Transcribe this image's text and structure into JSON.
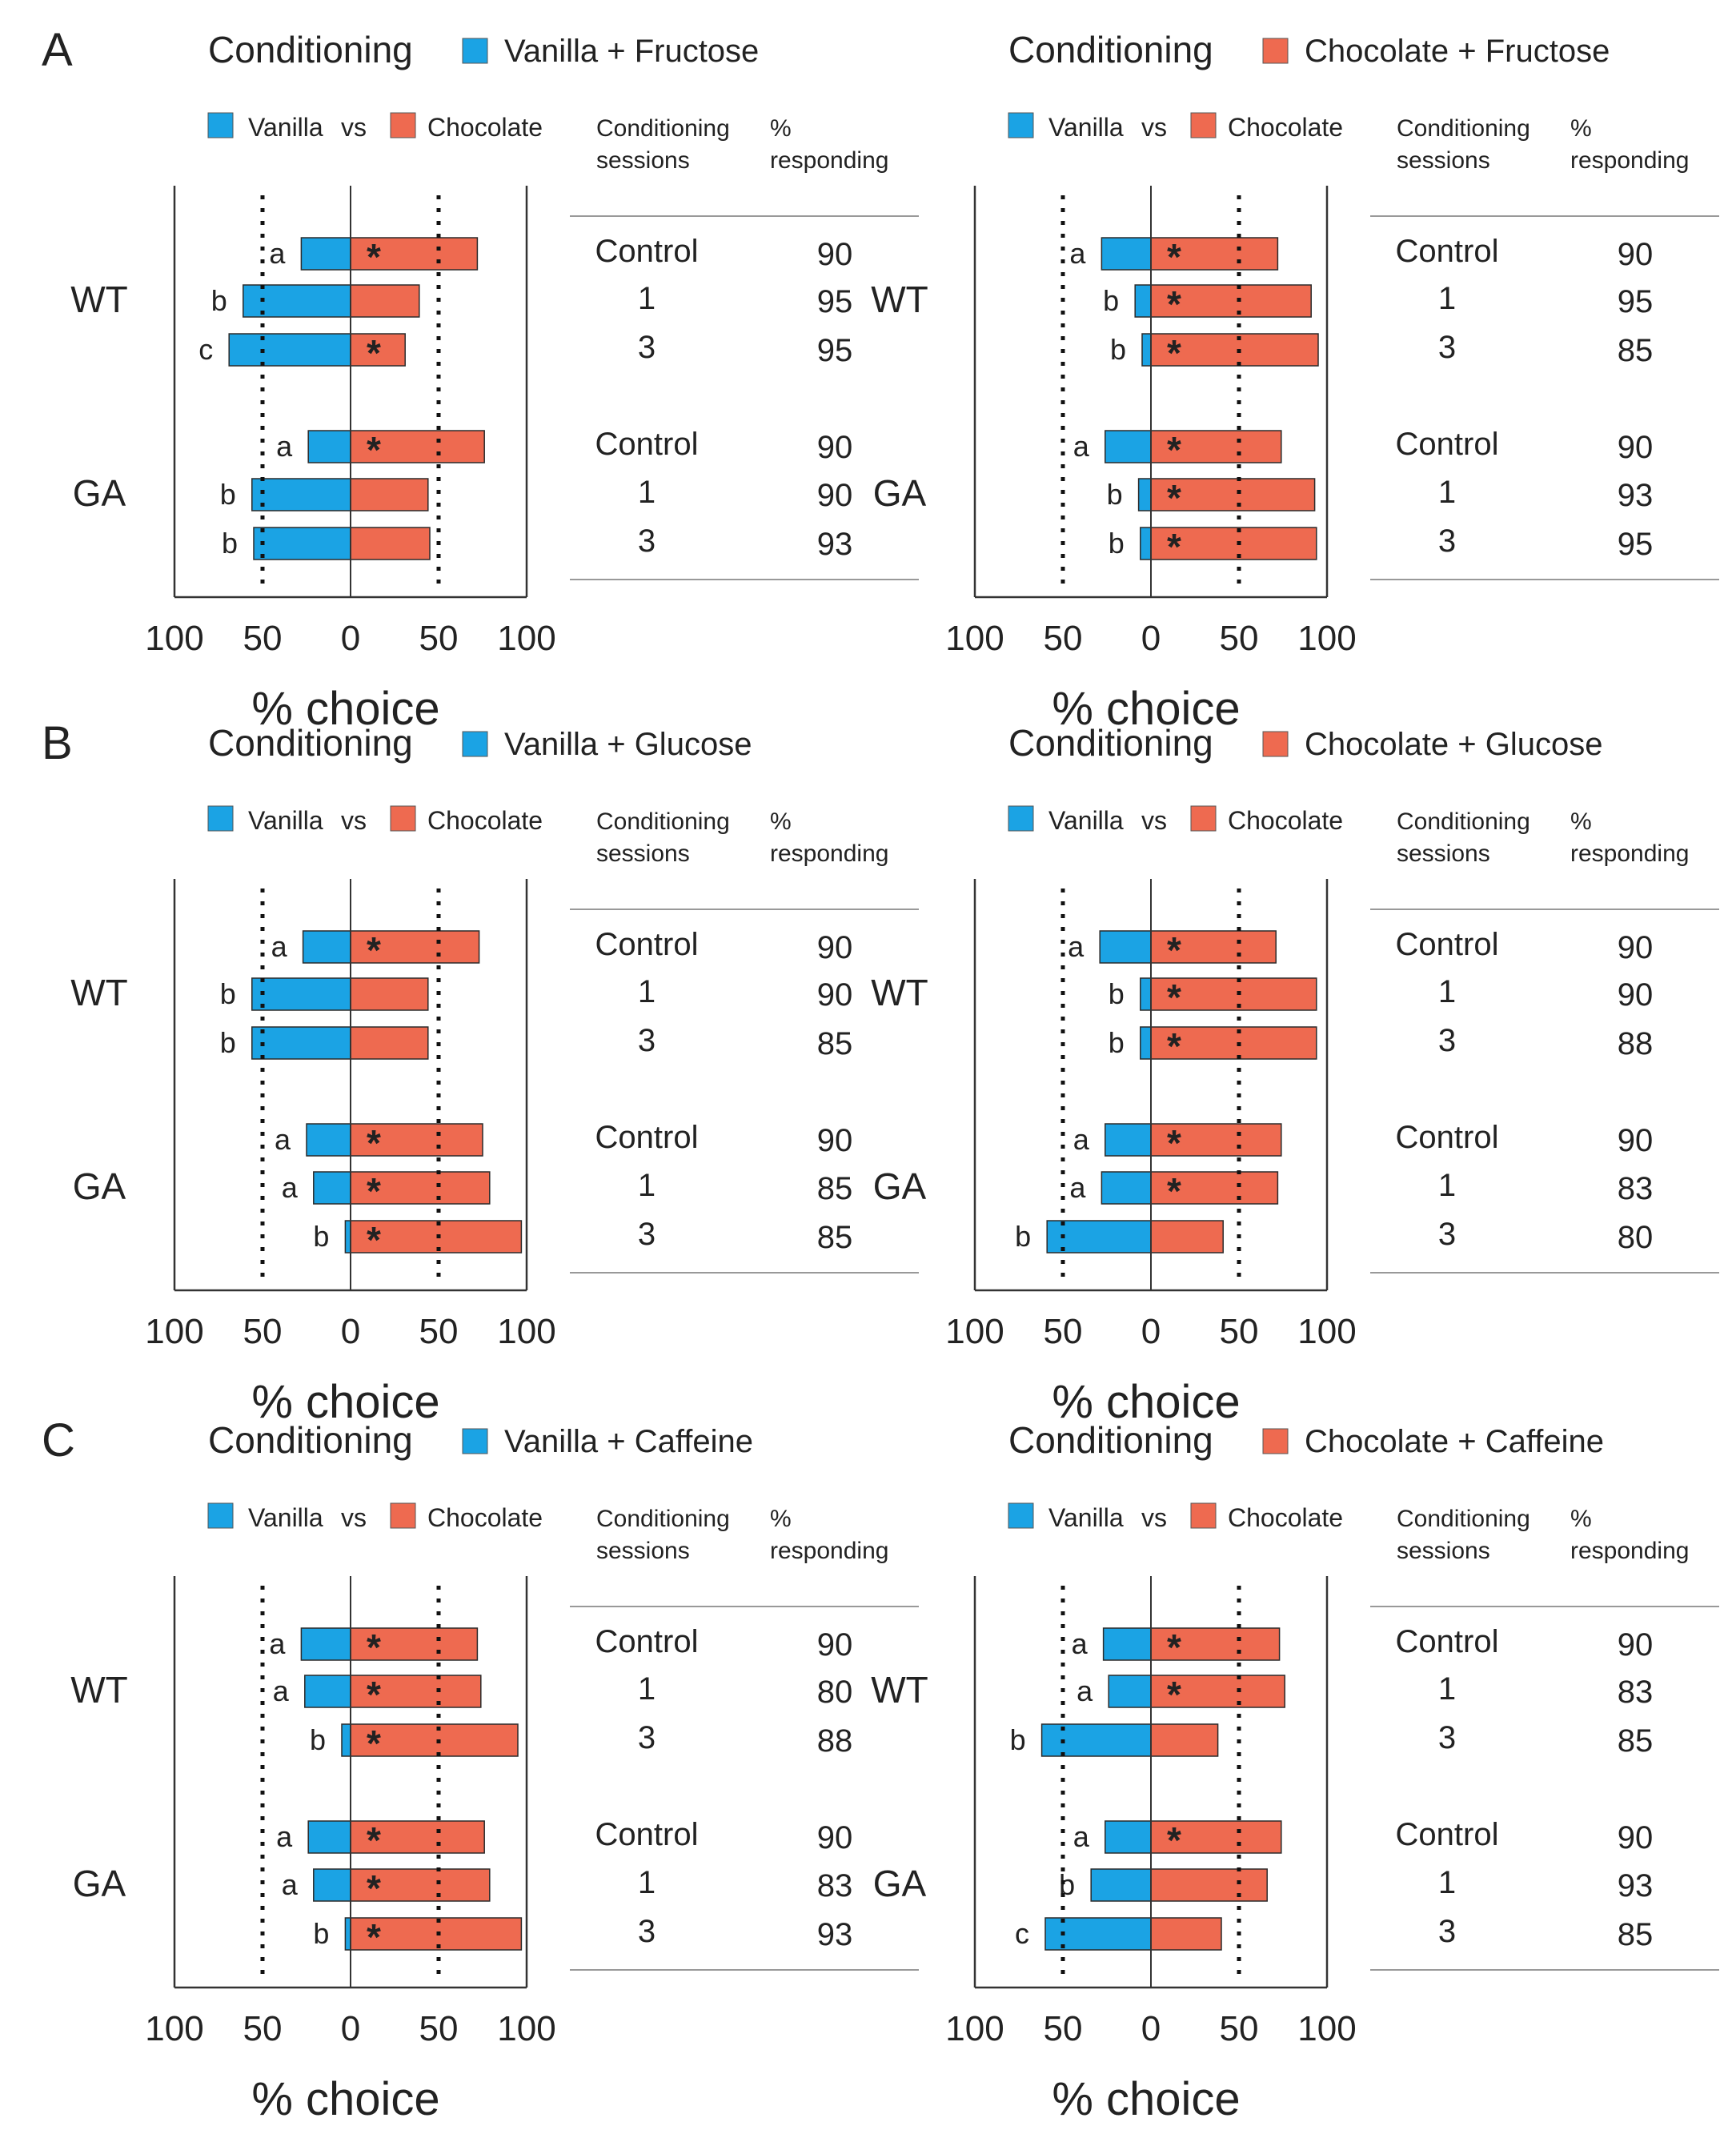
{
  "colors": {
    "vanilla": "#1ba3e4",
    "chocolate": "#ee6a50",
    "axis": "#333333",
    "text": "#222222",
    "rule": "#999999"
  },
  "labels": {
    "conditioning": "Conditioning",
    "vanilla": "Vanilla",
    "vs": "vs",
    "chocolate": "Chocolate",
    "sessions_header": [
      "Conditioning",
      "sessions"
    ],
    "responding_header": [
      "%",
      "responding"
    ],
    "groups": [
      "WT",
      "GA"
    ],
    "x_label": "% choice",
    "x_ticks": [
      "100",
      "50",
      "0",
      "50",
      "100"
    ],
    "star": "*"
  },
  "chart_data": [
    {
      "panel": "A",
      "type": "bar",
      "title": "Conditioning",
      "legend": "Vanilla + Fructose",
      "cs": "vanilla",
      "xlabel": "% choice",
      "xlim": [
        -100,
        100
      ],
      "reference_lines": [
        -50,
        50
      ],
      "groups": [
        {
          "name": "WT",
          "rows": [
            {
              "session": "Control",
              "vanilla": 28,
              "chocolate": 72,
              "letter": "a",
              "star": true,
              "responding": "90"
            },
            {
              "session": "1",
              "vanilla": 61,
              "chocolate": 39,
              "letter": "b",
              "star": false,
              "responding": "95"
            },
            {
              "session": "3",
              "vanilla": 69,
              "chocolate": 31,
              "letter": "c",
              "star": true,
              "responding": "95"
            }
          ]
        },
        {
          "name": "GA",
          "rows": [
            {
              "session": "Control",
              "vanilla": 24,
              "chocolate": 76,
              "letter": "a",
              "star": true,
              "responding": "90"
            },
            {
              "session": "1",
              "vanilla": 56,
              "chocolate": 44,
              "letter": "b",
              "star": false,
              "responding": "90"
            },
            {
              "session": "3",
              "vanilla": 55,
              "chocolate": 45,
              "letter": "b",
              "star": false,
              "responding": "93"
            }
          ]
        }
      ]
    },
    {
      "panel": "",
      "type": "bar",
      "title": "Conditioning",
      "legend": "Chocolate + Fructose",
      "cs": "chocolate",
      "xlabel": "% choice",
      "xlim": [
        -100,
        100
      ],
      "reference_lines": [
        -50,
        50
      ],
      "groups": [
        {
          "name": "WT",
          "rows": [
            {
              "session": "Control",
              "vanilla": 28,
              "chocolate": 72,
              "letter": "a",
              "star": true,
              "responding": "90"
            },
            {
              "session": "1",
              "vanilla": 9,
              "chocolate": 91,
              "letter": "b",
              "star": true,
              "responding": "95"
            },
            {
              "session": "3",
              "vanilla": 5,
              "chocolate": 95,
              "letter": "b",
              "star": true,
              "responding": "85"
            }
          ]
        },
        {
          "name": "GA",
          "rows": [
            {
              "session": "Control",
              "vanilla": 26,
              "chocolate": 74,
              "letter": "a",
              "star": true,
              "responding": "90"
            },
            {
              "session": "1",
              "vanilla": 7,
              "chocolate": 93,
              "letter": "b",
              "star": true,
              "responding": "93"
            },
            {
              "session": "3",
              "vanilla": 6,
              "chocolate": 94,
              "letter": "b",
              "star": true,
              "responding": "95"
            }
          ]
        }
      ]
    },
    {
      "panel": "B",
      "type": "bar",
      "title": "Conditioning",
      "legend": "Vanilla + Glucose",
      "cs": "vanilla",
      "xlabel": "% choice",
      "xlim": [
        -100,
        100
      ],
      "reference_lines": [
        -50,
        50
      ],
      "groups": [
        {
          "name": "WT",
          "rows": [
            {
              "session": "Control",
              "vanilla": 27,
              "chocolate": 73,
              "letter": "a",
              "star": true,
              "responding": "90"
            },
            {
              "session": "1",
              "vanilla": 56,
              "chocolate": 44,
              "letter": "b",
              "star": false,
              "responding": "90"
            },
            {
              "session": "3",
              "vanilla": 56,
              "chocolate": 44,
              "letter": "b",
              "star": false,
              "responding": "85"
            }
          ]
        },
        {
          "name": "GA",
          "rows": [
            {
              "session": "Control",
              "vanilla": 25,
              "chocolate": 75,
              "letter": "a",
              "star": true,
              "responding": "90"
            },
            {
              "session": "1",
              "vanilla": 21,
              "chocolate": 79,
              "letter": "a",
              "star": true,
              "responding": "85"
            },
            {
              "session": "3",
              "vanilla": 3,
              "chocolate": 97,
              "letter": "b",
              "star": true,
              "responding": "85"
            }
          ]
        }
      ]
    },
    {
      "panel": "",
      "type": "bar",
      "title": "Conditioning",
      "legend": "Chocolate + Glucose",
      "cs": "chocolate",
      "xlabel": "% choice",
      "xlim": [
        -100,
        100
      ],
      "reference_lines": [
        -50,
        50
      ],
      "groups": [
        {
          "name": "WT",
          "rows": [
            {
              "session": "Control",
              "vanilla": 29,
              "chocolate": 71,
              "letter": "a",
              "star": true,
              "responding": "90"
            },
            {
              "session": "1",
              "vanilla": 6,
              "chocolate": 94,
              "letter": "b",
              "star": true,
              "responding": "90"
            },
            {
              "session": "3",
              "vanilla": 6,
              "chocolate": 94,
              "letter": "b",
              "star": true,
              "responding": "88"
            }
          ]
        },
        {
          "name": "GA",
          "rows": [
            {
              "session": "Control",
              "vanilla": 26,
              "chocolate": 74,
              "letter": "a",
              "star": true,
              "responding": "90"
            },
            {
              "session": "1",
              "vanilla": 28,
              "chocolate": 72,
              "letter": "a",
              "star": true,
              "responding": "83"
            },
            {
              "session": "3",
              "vanilla": 59,
              "chocolate": 41,
              "letter": "b",
              "star": false,
              "responding": "80"
            }
          ]
        }
      ]
    },
    {
      "panel": "C",
      "type": "bar",
      "title": "Conditioning",
      "legend": "Vanilla + Caffeine",
      "cs": "vanilla",
      "xlabel": "% choice",
      "xlim": [
        -100,
        100
      ],
      "reference_lines": [
        -50,
        50
      ],
      "groups": [
        {
          "name": "WT",
          "rows": [
            {
              "session": "Control",
              "vanilla": 28,
              "chocolate": 72,
              "letter": "a",
              "star": true,
              "responding": "90"
            },
            {
              "session": "1",
              "vanilla": 26,
              "chocolate": 74,
              "letter": "a",
              "star": true,
              "responding": "80"
            },
            {
              "session": "3",
              "vanilla": 5,
              "chocolate": 95,
              "letter": "b",
              "star": true,
              "responding": "88"
            }
          ]
        },
        {
          "name": "GA",
          "rows": [
            {
              "session": "Control",
              "vanilla": 24,
              "chocolate": 76,
              "letter": "a",
              "star": true,
              "responding": "90"
            },
            {
              "session": "1",
              "vanilla": 21,
              "chocolate": 79,
              "letter": "a",
              "star": true,
              "responding": "83"
            },
            {
              "session": "3",
              "vanilla": 3,
              "chocolate": 97,
              "letter": "b",
              "star": true,
              "responding": "93"
            }
          ]
        }
      ]
    },
    {
      "panel": "",
      "type": "bar",
      "title": "Conditioning",
      "legend": "Chocolate + Caffeine",
      "cs": "chocolate",
      "xlabel": "% choice",
      "xlim": [
        -100,
        100
      ],
      "reference_lines": [
        -50,
        50
      ],
      "groups": [
        {
          "name": "WT",
          "rows": [
            {
              "session": "Control",
              "vanilla": 27,
              "chocolate": 73,
              "letter": "a",
              "star": true,
              "responding": "90"
            },
            {
              "session": "1",
              "vanilla": 24,
              "chocolate": 76,
              "letter": "a",
              "star": true,
              "responding": "83"
            },
            {
              "session": "3",
              "vanilla": 62,
              "chocolate": 38,
              "letter": "b",
              "star": false,
              "responding": "85"
            }
          ]
        },
        {
          "name": "GA",
          "rows": [
            {
              "session": "Control",
              "vanilla": 26,
              "chocolate": 74,
              "letter": "a",
              "star": true,
              "responding": "90"
            },
            {
              "session": "1",
              "vanilla": 34,
              "chocolate": 66,
              "letter": "b",
              "star": false,
              "responding": "93"
            },
            {
              "session": "3",
              "vanilla": 60,
              "chocolate": 40,
              "letter": "c",
              "star": false,
              "responding": "85"
            }
          ]
        }
      ]
    }
  ]
}
